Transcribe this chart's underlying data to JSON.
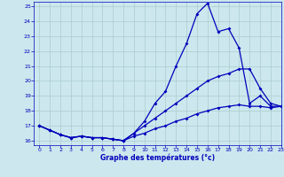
{
  "xlabel": "Graphe des températures (°c)",
  "xlim": [
    -0.5,
    23
  ],
  "ylim": [
    15.7,
    25.3
  ],
  "yticks": [
    16,
    17,
    18,
    19,
    20,
    21,
    22,
    23,
    24,
    25
  ],
  "xticks": [
    0,
    1,
    2,
    3,
    4,
    5,
    6,
    7,
    8,
    9,
    10,
    11,
    12,
    13,
    14,
    15,
    16,
    17,
    18,
    19,
    20,
    21,
    22,
    23
  ],
  "background_color": "#cce8ee",
  "grid_color": "#aacccc",
  "line_color": "#0000bb",
  "s0_x": [
    0,
    1,
    2,
    3,
    4,
    5,
    6,
    7,
    8,
    9,
    10,
    11,
    12,
    13,
    14,
    15,
    16,
    17,
    18,
    19,
    20,
    21,
    22,
    23
  ],
  "s0_y": [
    17.0,
    16.7,
    16.4,
    16.2,
    16.3,
    16.2,
    16.2,
    16.1,
    16.0,
    16.5,
    17.3,
    18.5,
    19.3,
    21.0,
    22.5,
    24.5,
    25.2,
    23.3,
    23.5,
    22.2,
    18.5,
    19.0,
    18.3,
    18.3
  ],
  "s1_x": [
    0,
    1,
    2,
    3,
    4,
    5,
    6,
    7,
    8,
    9,
    10,
    11,
    12,
    13,
    14,
    15,
    16,
    17,
    18,
    19,
    20,
    21,
    22,
    23
  ],
  "s1_y": [
    17.0,
    16.7,
    16.4,
    16.2,
    16.3,
    16.2,
    16.2,
    16.1,
    16.0,
    16.5,
    17.0,
    17.5,
    18.0,
    18.5,
    19.0,
    19.5,
    20.0,
    20.3,
    20.5,
    20.8,
    20.8,
    19.5,
    18.5,
    18.3
  ],
  "s2_x": [
    0,
    1,
    2,
    3,
    4,
    5,
    6,
    7,
    8,
    9,
    10,
    11,
    12,
    13,
    14,
    15,
    16,
    17,
    18,
    19,
    20,
    21,
    22,
    23
  ],
  "s2_y": [
    17.0,
    16.7,
    16.4,
    16.2,
    16.3,
    16.2,
    16.2,
    16.1,
    16.0,
    16.3,
    16.5,
    16.8,
    17.0,
    17.3,
    17.5,
    17.8,
    18.0,
    18.2,
    18.3,
    18.4,
    18.3,
    18.3,
    18.2,
    18.3
  ]
}
